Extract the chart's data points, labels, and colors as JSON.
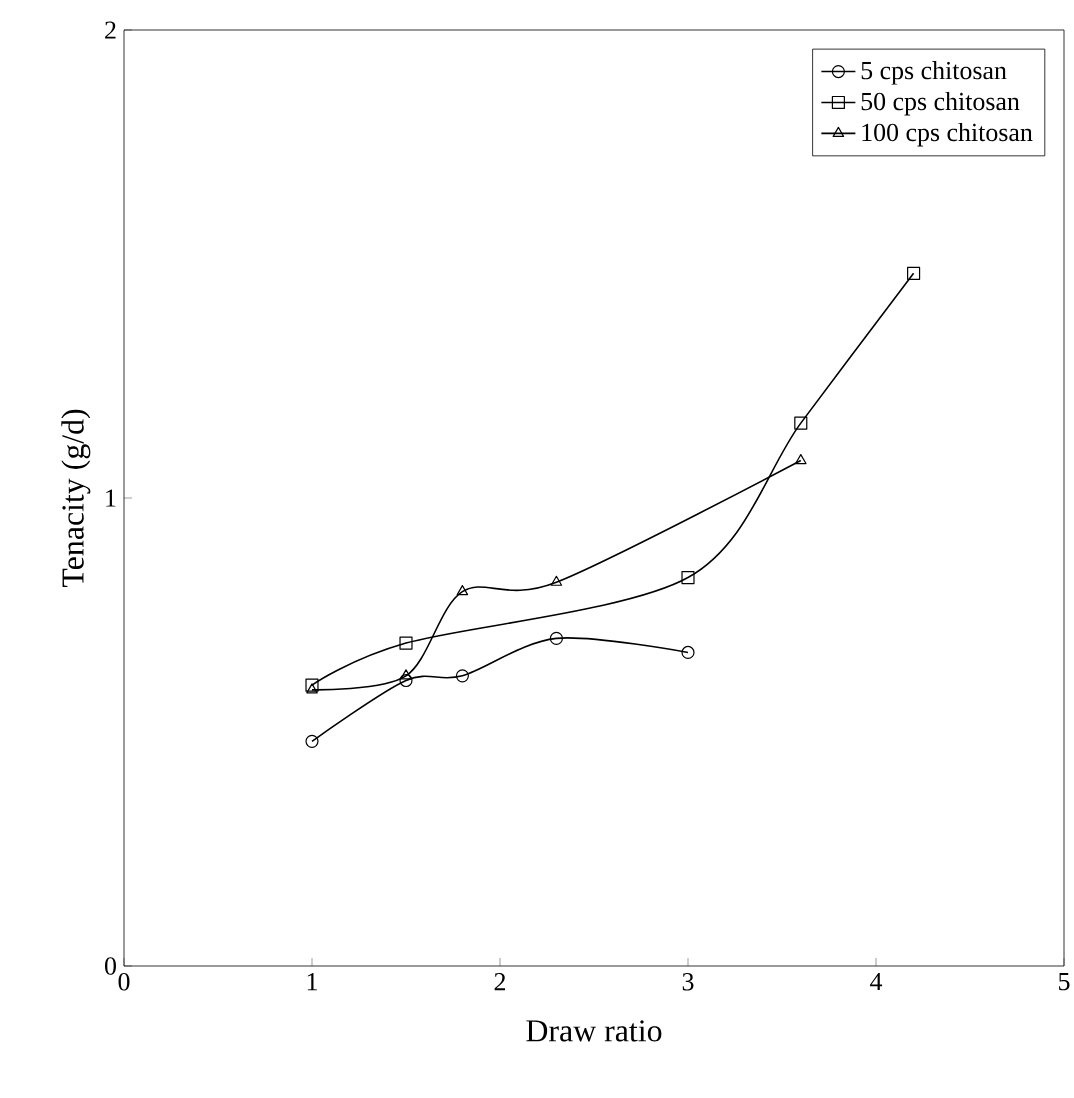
{
  "chart_data": {
    "type": "line",
    "xlabel": "Draw ratio",
    "ylabel": "Tenacity (g/d)",
    "xlim": [
      0,
      5
    ],
    "ylim": [
      0,
      2
    ],
    "xticks": [
      0,
      1,
      2,
      3,
      4,
      5
    ],
    "yticks": [
      0,
      1,
      2
    ],
    "grid": false,
    "legend": "top right",
    "line_style": "solid",
    "series": [
      {
        "name": "5 cps chitosan",
        "color": "#000000",
        "marker": "circle",
        "x": [
          1,
          1.5,
          1.8,
          2.3,
          3
        ],
        "values": [
          0.48,
          0.61,
          0.62,
          0.7,
          0.67
        ]
      },
      {
        "name": "50 cps chitosan",
        "color": "#000000",
        "marker": "square",
        "x": [
          1,
          1.5,
          3,
          3.6,
          4.2
        ],
        "values": [
          0.6,
          0.69,
          0.83,
          1.16,
          1.48
        ]
      },
      {
        "name": "100 cps chitosan",
        "color": "#000000",
        "marker": "triangle",
        "x": [
          1,
          1.5,
          1.8,
          2.3,
          3.6
        ],
        "values": [
          0.59,
          0.62,
          0.8,
          0.82,
          1.08
        ]
      }
    ]
  }
}
